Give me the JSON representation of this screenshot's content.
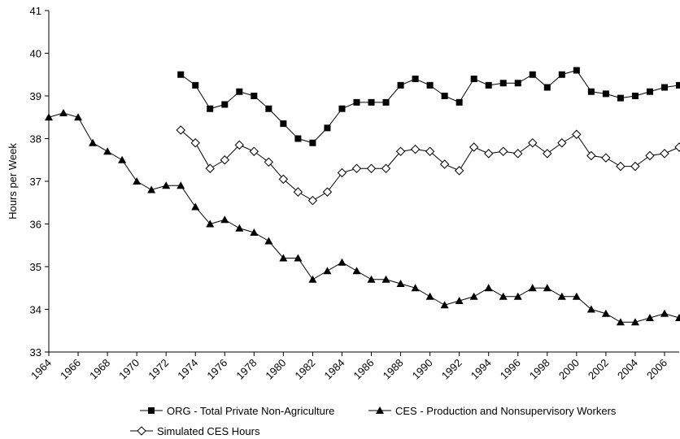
{
  "chart_data": {
    "type": "line",
    "y_label": "Hours per Week",
    "x": [
      1964,
      1965,
      1966,
      1967,
      1968,
      1969,
      1970,
      1971,
      1972,
      1973,
      1974,
      1975,
      1976,
      1977,
      1978,
      1979,
      1980,
      1981,
      1982,
      1983,
      1984,
      1985,
      1986,
      1987,
      1988,
      1989,
      1990,
      1991,
      1992,
      1993,
      1994,
      1995,
      1996,
      1997,
      1998,
      1999,
      2000,
      2001,
      2002,
      2003,
      2004,
      2005,
      2006,
      2007
    ],
    "series": [
      {
        "name": "ORG - Total Private Non-Agriculture",
        "color": "#000000",
        "marker": "square",
        "values": [
          null,
          null,
          null,
          null,
          null,
          null,
          null,
          null,
          null,
          39.5,
          39.25,
          38.7,
          38.8,
          39.1,
          39.0,
          38.7,
          38.35,
          38.0,
          37.9,
          38.25,
          38.7,
          38.85,
          38.85,
          38.85,
          39.25,
          39.4,
          39.25,
          39.0,
          38.85,
          39.4,
          39.25,
          39.3,
          39.3,
          39.5,
          39.2,
          39.5,
          39.6,
          39.1,
          39.05,
          38.95,
          39.0,
          39.1,
          39.2,
          39.25
        ]
      },
      {
        "name": "CES - Production and Nonsupervisory Workers",
        "color": "#000000",
        "marker": "triangle",
        "values": [
          38.5,
          38.6,
          38.5,
          37.9,
          37.7,
          37.5,
          37.0,
          36.8,
          36.9,
          36.9,
          36.4,
          36.0,
          36.1,
          35.9,
          35.8,
          35.6,
          35.2,
          35.2,
          34.7,
          34.9,
          35.1,
          34.9,
          34.7,
          34.7,
          34.6,
          34.5,
          34.3,
          34.1,
          34.2,
          34.3,
          34.5,
          34.3,
          34.3,
          34.5,
          34.5,
          34.3,
          34.3,
          34.0,
          33.9,
          33.7,
          33.7,
          33.8,
          33.9,
          33.8
        ]
      },
      {
        "name": "Simulated CES Hours",
        "color": "#000000",
        "marker": "diamond",
        "values": [
          null,
          null,
          null,
          null,
          null,
          null,
          null,
          null,
          null,
          38.2,
          37.9,
          37.3,
          37.5,
          37.85,
          37.7,
          37.45,
          37.05,
          36.75,
          36.55,
          36.75,
          37.2,
          37.3,
          37.3,
          37.3,
          37.7,
          37.75,
          37.7,
          37.4,
          37.25,
          37.8,
          37.65,
          37.7,
          37.65,
          37.9,
          37.65,
          37.9,
          38.1,
          37.6,
          37.55,
          37.35,
          37.35,
          37.6,
          37.65,
          37.8
        ]
      }
    ],
    "xlim": [
      1964,
      2007
    ],
    "xticks": [
      1964,
      1966,
      1968,
      1970,
      1972,
      1974,
      1976,
      1978,
      1980,
      1982,
      1984,
      1986,
      1988,
      1990,
      1992,
      1994,
      1996,
      1998,
      2000,
      2002,
      2004,
      2006
    ],
    "ylim": [
      33,
      41
    ],
    "yticks": [
      33,
      34,
      35,
      36,
      37,
      38,
      39,
      40,
      41
    ],
    "grid": false
  }
}
